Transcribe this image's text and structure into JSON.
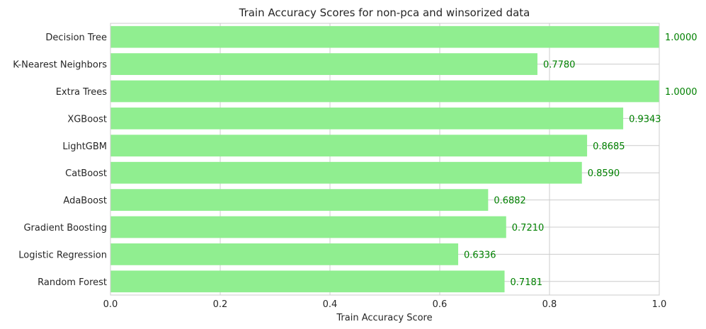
{
  "chart_data": {
    "type": "bar",
    "orientation": "horizontal",
    "title": "Train Accuracy Scores for non-pca and winsorized data",
    "xlabel": "Train Accuracy Score",
    "ylabel": "",
    "xlim": [
      0,
      1
    ],
    "xticks": [
      "0.0",
      "0.2",
      "0.4",
      "0.6",
      "0.8",
      "1.0"
    ],
    "grid": true,
    "bar_color": "#90ee90",
    "label_color": "#008000",
    "categories": [
      "Decision Tree",
      "K-Nearest Neighbors",
      "Extra Trees",
      "XGBoost",
      "LightGBM",
      "CatBoost",
      "AdaBoost",
      "Gradient Boosting",
      "Logistic Regression",
      "Random Forest"
    ],
    "values": [
      1.0,
      0.778,
      1.0,
      0.9343,
      0.8685,
      0.859,
      0.6882,
      0.721,
      0.6336,
      0.7181
    ],
    "value_labels": [
      "1.0000",
      "0.7780",
      "1.0000",
      "0.9343",
      "0.8685",
      "0.8590",
      "0.6882",
      "0.7210",
      "0.6336",
      "0.7181"
    ]
  }
}
